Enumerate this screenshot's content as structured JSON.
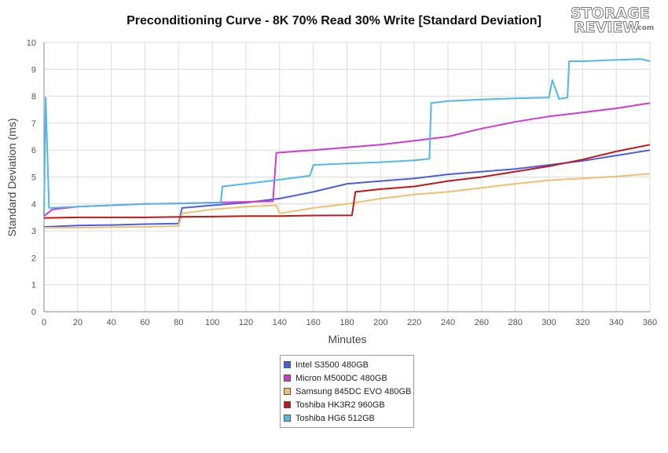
{
  "chart_data": {
    "type": "line",
    "title": "Preconditioning Curve - 8K 70% Read 30% Write [Standard Deviation]",
    "xlabel": "Minutes",
    "ylabel": "Standard Deviation (ms)",
    "xlim": [
      0,
      360
    ],
    "ylim": [
      0,
      10
    ],
    "xticks": [
      0,
      20,
      40,
      60,
      80,
      100,
      120,
      140,
      160,
      180,
      200,
      220,
      240,
      260,
      280,
      300,
      320,
      340,
      360
    ],
    "yticks": [
      0,
      1,
      2,
      3,
      4,
      5,
      6,
      7,
      8,
      9,
      10
    ],
    "grid": true,
    "legend_position": "bottom-center",
    "series": [
      {
        "name": "Intel S3500 480GB",
        "color": "#4a5fe0",
        "points": [
          [
            0,
            3.15
          ],
          [
            20,
            3.2
          ],
          [
            40,
            3.22
          ],
          [
            60,
            3.25
          ],
          [
            80,
            3.27
          ],
          [
            82,
            3.85
          ],
          [
            100,
            3.95
          ],
          [
            120,
            4.05
          ],
          [
            140,
            4.2
          ],
          [
            160,
            4.45
          ],
          [
            180,
            4.75
          ],
          [
            200,
            4.85
          ],
          [
            220,
            4.95
          ],
          [
            240,
            5.1
          ],
          [
            260,
            5.2
          ],
          [
            280,
            5.3
          ],
          [
            300,
            5.45
          ],
          [
            320,
            5.6
          ],
          [
            340,
            5.8
          ],
          [
            360,
            6.0
          ]
        ]
      },
      {
        "name": "Micron M500DC 480GB",
        "color": "#d03ad0",
        "points": [
          [
            0,
            3.55
          ],
          [
            5,
            3.8
          ],
          [
            20,
            3.9
          ],
          [
            40,
            3.95
          ],
          [
            60,
            4.0
          ],
          [
            80,
            4.02
          ],
          [
            100,
            4.05
          ],
          [
            120,
            4.08
          ],
          [
            136,
            4.1
          ],
          [
            138,
            5.9
          ],
          [
            160,
            6.0
          ],
          [
            180,
            6.1
          ],
          [
            200,
            6.2
          ],
          [
            220,
            6.35
          ],
          [
            240,
            6.5
          ],
          [
            260,
            6.8
          ],
          [
            280,
            7.05
          ],
          [
            300,
            7.25
          ],
          [
            320,
            7.4
          ],
          [
            340,
            7.55
          ],
          [
            360,
            7.75
          ]
        ]
      },
      {
        "name": "Samsung 845DC EVO 480GB",
        "color": "#f0c070",
        "points": [
          [
            0,
            3.12
          ],
          [
            20,
            3.12
          ],
          [
            40,
            3.14
          ],
          [
            60,
            3.15
          ],
          [
            80,
            3.18
          ],
          [
            82,
            3.65
          ],
          [
            100,
            3.8
          ],
          [
            120,
            3.9
          ],
          [
            138,
            3.95
          ],
          [
            140,
            3.65
          ],
          [
            160,
            3.85
          ],
          [
            180,
            4.0
          ],
          [
            200,
            4.2
          ],
          [
            220,
            4.35
          ],
          [
            240,
            4.45
          ],
          [
            260,
            4.6
          ],
          [
            280,
            4.75
          ],
          [
            300,
            4.88
          ],
          [
            320,
            4.95
          ],
          [
            340,
            5.02
          ],
          [
            360,
            5.12
          ]
        ]
      },
      {
        "name": "Toshiba HK3R2 960GB",
        "color": "#c01818",
        "points": [
          [
            0,
            3.48
          ],
          [
            20,
            3.5
          ],
          [
            40,
            3.5
          ],
          [
            60,
            3.5
          ],
          [
            80,
            3.52
          ],
          [
            100,
            3.53
          ],
          [
            120,
            3.55
          ],
          [
            140,
            3.55
          ],
          [
            160,
            3.57
          ],
          [
            183,
            3.58
          ],
          [
            185,
            4.45
          ],
          [
            200,
            4.55
          ],
          [
            220,
            4.65
          ],
          [
            240,
            4.85
          ],
          [
            260,
            5.0
          ],
          [
            280,
            5.2
          ],
          [
            300,
            5.4
          ],
          [
            320,
            5.65
          ],
          [
            340,
            5.95
          ],
          [
            360,
            6.2
          ]
        ]
      },
      {
        "name": "Toshiba HG6 512GB",
        "color": "#50b8ec",
        "points": [
          [
            0,
            3.6
          ],
          [
            1,
            7.95
          ],
          [
            3,
            3.85
          ],
          [
            20,
            3.9
          ],
          [
            40,
            3.95
          ],
          [
            60,
            4.0
          ],
          [
            80,
            4.02
          ],
          [
            100,
            4.05
          ],
          [
            105,
            4.05
          ],
          [
            106,
            4.65
          ],
          [
            120,
            4.75
          ],
          [
            140,
            4.9
          ],
          [
            158,
            5.05
          ],
          [
            160,
            5.45
          ],
          [
            180,
            5.5
          ],
          [
            200,
            5.55
          ],
          [
            220,
            5.62
          ],
          [
            229,
            5.68
          ],
          [
            230,
            7.75
          ],
          [
            240,
            7.82
          ],
          [
            260,
            7.88
          ],
          [
            280,
            7.92
          ],
          [
            300,
            7.95
          ],
          [
            302,
            8.6
          ],
          [
            306,
            7.9
          ],
          [
            311,
            7.95
          ],
          [
            312,
            9.3
          ],
          [
            320,
            9.3
          ],
          [
            340,
            9.35
          ],
          [
            355,
            9.38
          ],
          [
            360,
            9.3
          ]
        ]
      }
    ]
  }
}
